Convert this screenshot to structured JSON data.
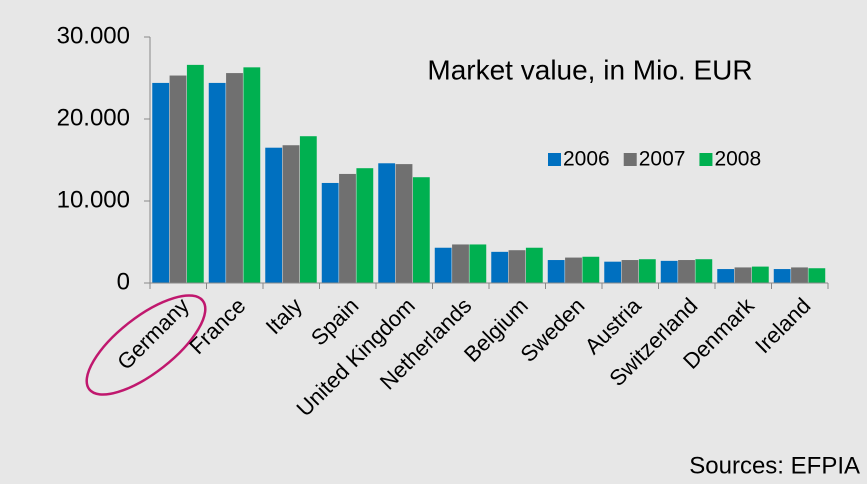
{
  "chart_data": {
    "type": "bar",
    "annotation": "Market value, in Mio. EUR",
    "source": "Sources: EFPIA",
    "categories": [
      "Germany",
      "France",
      "Italy",
      "Spain",
      "United Kingdom",
      "Netherlands",
      "Belgium",
      "Sweden",
      "Austria",
      "Switzerland",
      "Denmark",
      "Ireland"
    ],
    "series": [
      {
        "name": "2006",
        "color": "#0070c0",
        "values": [
          24400,
          24400,
          16500,
          12200,
          14600,
          4300,
          3800,
          2800,
          2600,
          2700,
          1700,
          1700
        ]
      },
      {
        "name": "2007",
        "color": "#707070",
        "values": [
          25300,
          25600,
          16800,
          13300,
          14500,
          4700,
          4000,
          3100,
          2800,
          2800,
          1900,
          1900
        ]
      },
      {
        "name": "2008",
        "color": "#00b050",
        "values": [
          26600,
          26300,
          17900,
          14000,
          12900,
          4700,
          4300,
          3200,
          2900,
          2900,
          2000,
          1800
        ]
      }
    ],
    "ylim": [
      0,
      30000
    ],
    "yticks": [
      0,
      {
        "value": 10000,
        "label": "10.000"
      },
      {
        "value": 20000,
        "label": "20.000"
      },
      {
        "value": 30000,
        "label": "30.000"
      }
    ],
    "grid": false,
    "legend": "upper right"
  }
}
